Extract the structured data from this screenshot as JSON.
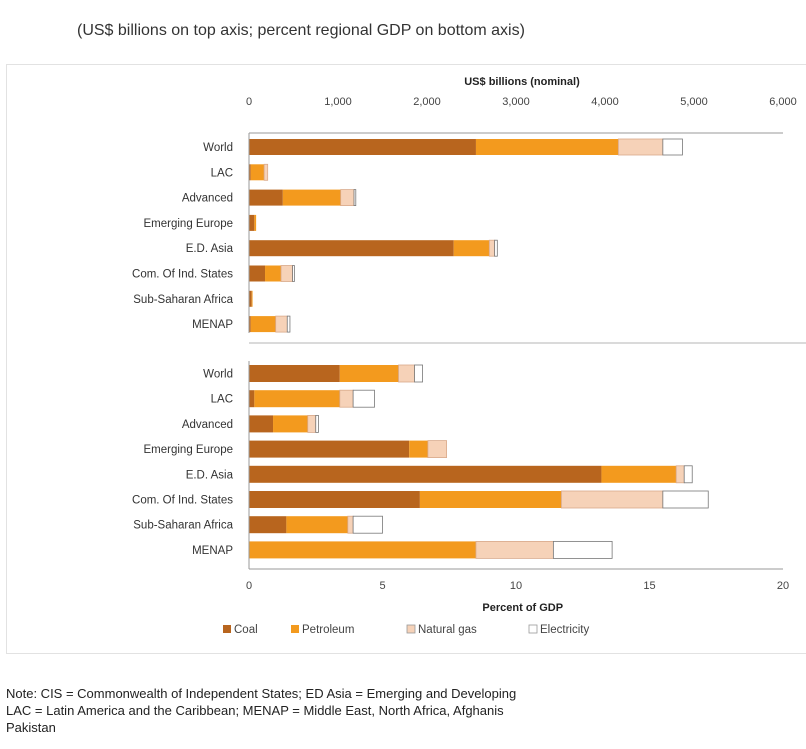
{
  "subtitle": "(US$ billions on top axis; percent regional GDP on bottom axis)",
  "note_lines": [
    "Note: CIS = Commonwealth of Independent States; ED Asia = Emerging and Developing",
    "LAC = Latin America and the Caribbean; MENAP = Middle East, North Africa, Afghanis",
    "Pakistan"
  ],
  "colors": {
    "coal": "#b8651e",
    "petroleum": "#f39a1e",
    "natural_gas": "#f6d2b8",
    "electricity": "#ffffff"
  },
  "chart_data": [
    {
      "type": "bar",
      "orientation": "horizontal",
      "stacked": true,
      "xlabel": "US$ billions (nominal)",
      "xaxis_position": "top",
      "xlim": [
        0,
        6000
      ],
      "xticks": [
        0,
        1000,
        2000,
        3000,
        4000,
        5000,
        6000
      ],
      "xtick_labels": [
        "0",
        "1,000",
        "2,000",
        "3,000",
        "4,000",
        "5,000",
        "6,000"
      ],
      "categories": [
        "World",
        "LAC",
        "Advanced",
        "Emerging Europe",
        "E.D. Asia",
        "Com. Of Ind. States",
        "Sub-Saharan Africa",
        "MENAP"
      ],
      "series": [
        {
          "name": "Coal",
          "values": [
            2550,
            20,
            380,
            60,
            2300,
            180,
            30,
            20
          ]
        },
        {
          "name": "Petroleum",
          "values": [
            1600,
            150,
            650,
            20,
            400,
            180,
            10,
            280
          ]
        },
        {
          "name": "Natural gas",
          "values": [
            500,
            40,
            150,
            0,
            60,
            130,
            0,
            130
          ]
        },
        {
          "name": "Electricity",
          "values": [
            220,
            0,
            20,
            0,
            30,
            20,
            0,
            30
          ]
        }
      ]
    },
    {
      "type": "bar",
      "orientation": "horizontal",
      "stacked": true,
      "xlabel": "Percent of GDP",
      "xaxis_position": "bottom",
      "xlim": [
        0,
        20
      ],
      "xticks": [
        0,
        5,
        10,
        15,
        20
      ],
      "xtick_labels": [
        "0",
        "5",
        "10",
        "15",
        "20"
      ],
      "categories": [
        "World",
        "LAC",
        "Advanced",
        "Emerging Europe",
        "E.D. Asia",
        "Com. Of Ind. States",
        "Sub-Saharan Africa",
        "MENAP"
      ],
      "series": [
        {
          "name": "Coal",
          "values": [
            3.4,
            0.2,
            0.9,
            6.0,
            13.2,
            6.4,
            1.4,
            0.0
          ]
        },
        {
          "name": "Petroleum",
          "values": [
            2.2,
            3.2,
            1.3,
            0.7,
            2.8,
            5.3,
            2.3,
            8.5
          ]
        },
        {
          "name": "Natural gas",
          "values": [
            0.6,
            0.5,
            0.3,
            0.7,
            0.3,
            3.8,
            0.2,
            2.9
          ]
        },
        {
          "name": "Electricity",
          "values": [
            0.3,
            0.8,
            0.1,
            0.0,
            0.3,
            1.7,
            1.1,
            2.2
          ]
        }
      ],
      "legend": {
        "position": "bottom",
        "entries": [
          "Coal",
          "Petroleum",
          "Natural gas",
          "Electricity"
        ]
      }
    }
  ]
}
